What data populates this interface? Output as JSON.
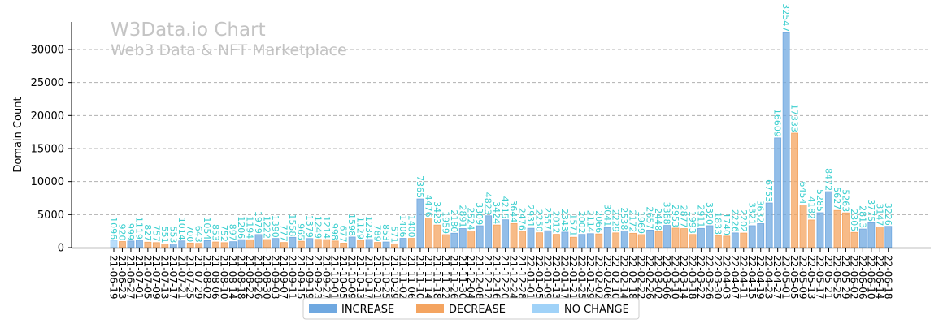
{
  "chart_data": {
    "type": "bar",
    "title": "W3Data.io Chart",
    "subtitle": "Web3 Data & NFT Marketplace",
    "xlabel": "",
    "ylabel": "Domain Count",
    "ylim": [
      0,
      34000
    ],
    "yticks": [
      0,
      5000,
      10000,
      15000,
      20000,
      25000,
      30000
    ],
    "grid": true,
    "legend_placement": "bottom-center",
    "legend": [
      {
        "key": "I",
        "label": "INCREASE",
        "color": "#6fa8e0"
      },
      {
        "key": "D",
        "label": "DECREASE",
        "color": "#f4a460"
      },
      {
        "key": "N",
        "label": "NO CHANGE",
        "color": "#a0d2f8"
      }
    ],
    "label_color": "#3ccfcf",
    "categories": [
      "21-06-19",
      "21-06-23",
      "21-06-27",
      "21-07-01",
      "21-07-05",
      "21-07-09",
      "21-07-13",
      "21-07-17",
      "21-07-21",
      "21-07-25",
      "21-07-29",
      "21-08-02",
      "21-08-06",
      "21-08-10",
      "21-08-14",
      "21-08-18",
      "21-08-22",
      "21-08-26",
      "21-08-30",
      "21-09-03",
      "21-09-07",
      "21-09-11",
      "21-09-15",
      "21-09-19",
      "21-09-23",
      "21-09-27",
      "21-10-01",
      "21-10-05",
      "21-10-09",
      "21-10-13",
      "21-10-17",
      "21-10-21",
      "21-10-25",
      "21-10-29",
      "21-11-02",
      "21-11-06",
      "21-11-10",
      "21-11-14",
      "21-11-18",
      "21-11-22",
      "21-11-26",
      "21-11-30",
      "21-12-04",
      "21-12-08",
      "21-12-12",
      "21-12-16",
      "21-12-20",
      "21-12-24",
      "21-12-28",
      "22-01-01",
      "22-01-05",
      "22-01-09",
      "22-01-13",
      "22-01-17",
      "22-01-21",
      "22-01-25",
      "22-01-29",
      "22-02-02",
      "22-02-06",
      "22-02-10",
      "22-02-14",
      "22-02-18",
      "22-02-22",
      "22-02-26",
      "22-03-02",
      "22-03-06",
      "22-03-10",
      "22-03-14",
      "22-03-18",
      "22-03-22",
      "22-03-26",
      "22-03-30",
      "22-04-03",
      "22-04-07",
      "22-04-11",
      "22-04-15",
      "22-04-19",
      "22-04-23",
      "22-04-27",
      "22-05-01",
      "22-05-05",
      "22-05-09",
      "22-05-13",
      "22-05-17",
      "22-05-21",
      "22-05-25",
      "22-05-29",
      "22-06-02",
      "22-06-06",
      "22-06-10",
      "22-06-14",
      "22-06-18"
    ],
    "values": [
      1096,
      920,
      999,
      1119,
      827,
      757,
      551,
      553,
      1014,
      700,
      643,
      1054,
      853,
      752,
      897,
      1206,
      1194,
      1979,
      1222,
      1390,
      777,
      1558,
      965,
      1379,
      1249,
      1214,
      998,
      677,
      1598,
      1129,
      1234,
      789,
      853,
      571,
      1406,
      1400,
      7365,
      4476,
      3423,
      1959,
      2180,
      2891,
      2524,
      3309,
      4823,
      3424,
      4215,
      3644,
      2476,
      2931,
      2250,
      2557,
      2012,
      2343,
      1571,
      2002,
      2114,
      2066,
      3041,
      2229,
      2538,
      2172,
      1969,
      2657,
      2448,
      3368,
      2953,
      2877,
      1993,
      2911,
      3320,
      1833,
      1740,
      2226,
      2202,
      3321,
      3632,
      6753,
      16609,
      32547,
      17333,
      6454,
      4182,
      5285,
      8472,
      5627,
      5263,
      2305,
      2813,
      3775,
      3147,
      3226
    ],
    "change": [
      "N",
      "D",
      "I",
      "I",
      "D",
      "D",
      "D",
      "I",
      "I",
      "D",
      "D",
      "I",
      "D",
      "D",
      "I",
      "I",
      "D",
      "I",
      "D",
      "I",
      "D",
      "I",
      "D",
      "I",
      "D",
      "D",
      "D",
      "D",
      "I",
      "D",
      "I",
      "D",
      "I",
      "D",
      "I",
      "D",
      "I",
      "D",
      "D",
      "D",
      "I",
      "I",
      "D",
      "I",
      "I",
      "D",
      "I",
      "D",
      "D",
      "I",
      "D",
      "I",
      "D",
      "I",
      "D",
      "I",
      "I",
      "D",
      "I",
      "D",
      "I",
      "D",
      "D",
      "I",
      "D",
      "I",
      "D",
      "D",
      "D",
      "I",
      "I",
      "D",
      "D",
      "I",
      "D",
      "I",
      "I",
      "I",
      "I",
      "I",
      "D",
      "D",
      "D",
      "I",
      "I",
      "D",
      "D",
      "D",
      "I",
      "I",
      "D",
      "I"
    ]
  }
}
